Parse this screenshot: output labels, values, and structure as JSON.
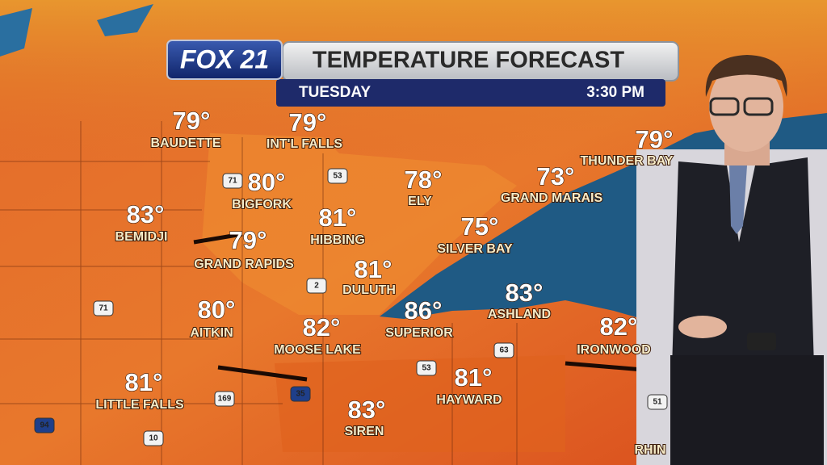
{
  "header": {
    "logo": "FOX 21",
    "title": "TEMPERATURE FORECAST",
    "day": "TUESDAY",
    "time": "3:30 PM"
  },
  "cities": [
    {
      "name": "BAUDETTE",
      "temp": "79°"
    },
    {
      "name": "INT'L FALLS",
      "temp": "79°"
    },
    {
      "name": "BIGFORK",
      "temp": "80°"
    },
    {
      "name": "BEMIDJI",
      "temp": "83°"
    },
    {
      "name": "HIBBING",
      "temp": "81°"
    },
    {
      "name": "GRAND RAPIDS",
      "temp": "79°"
    },
    {
      "name": "ELY",
      "temp": "78°"
    },
    {
      "name": "GRAND MARAIS",
      "temp": "73°"
    },
    {
      "name": "THUNDER BAY",
      "temp": "79°"
    },
    {
      "name": "SILVER BAY",
      "temp": "75°"
    },
    {
      "name": "DULUTH",
      "temp": "81°"
    },
    {
      "name": "AITKIN",
      "temp": "80°"
    },
    {
      "name": "MOOSE LAKE",
      "temp": "82°"
    },
    {
      "name": "SUPERIOR",
      "temp": "86°"
    },
    {
      "name": "ASHLAND",
      "temp": "83°"
    },
    {
      "name": "IRONWOOD",
      "temp": "82°"
    },
    {
      "name": "LITTLE FALLS",
      "temp": "81°"
    },
    {
      "name": "HAYWARD",
      "temp": "81°"
    },
    {
      "name": "SIREN",
      "temp": "83°"
    }
  ],
  "partial_label": "RHIN",
  "highways": [
    "71",
    "53",
    "2",
    "71",
    "35",
    "63",
    "53",
    "169",
    "10",
    "94",
    "51"
  ]
}
